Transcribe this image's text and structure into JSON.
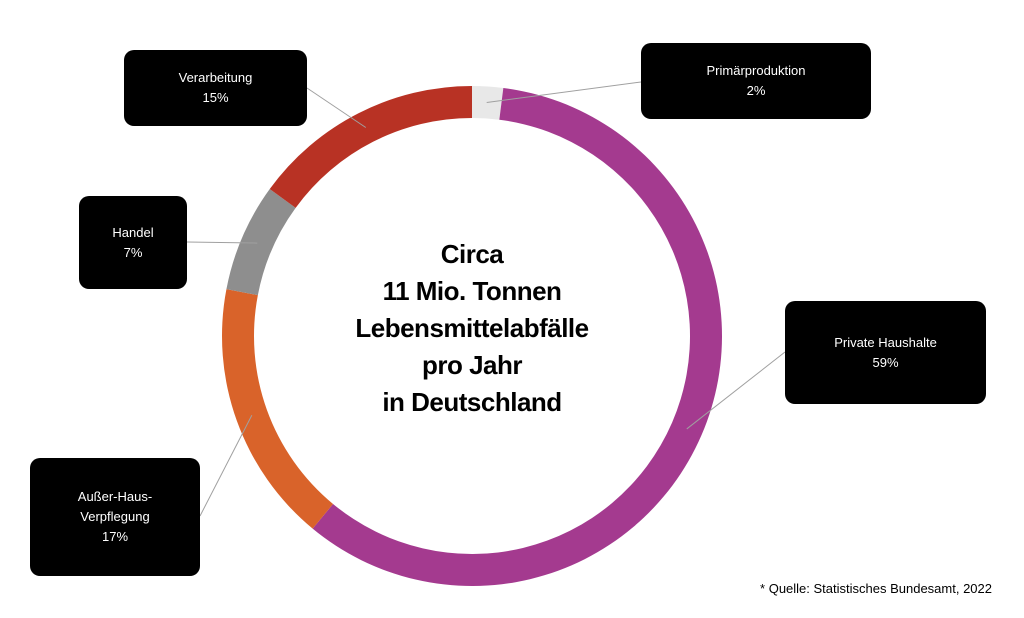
{
  "chart_data": {
    "type": "pie",
    "variant": "donut",
    "center_title_lines": [
      "Circa",
      "11 Mio. Tonnen",
      "Lebensmittelabfälle",
      "pro Jahr",
      "in Deutschland"
    ],
    "slices": [
      {
        "label": "Primärproduktion",
        "value": 2,
        "value_label": "2%",
        "color": "#e8e8e8"
      },
      {
        "label": "Private Haushalte",
        "value": 59,
        "value_label": "59%",
        "color": "#a43a8f"
      },
      {
        "label": "Außer-Haus-Verpflegung",
        "label_lines": [
          "Außer-Haus-",
          "Verpflegung"
        ],
        "value": 17,
        "value_label": "17%",
        "color": "#d9632a"
      },
      {
        "label": "Handel",
        "value": 7,
        "value_label": "7%",
        "color": "#8e8e8e"
      },
      {
        "label": "Verarbeitung",
        "value": 15,
        "value_label": "15%",
        "color": "#b83224"
      }
    ],
    "start_angle_deg": -90,
    "direction": "clockwise",
    "label_style": "black callout boxes with leader lines"
  },
  "footnote": "* Quelle: Statistisches Bundesamt, 2022"
}
